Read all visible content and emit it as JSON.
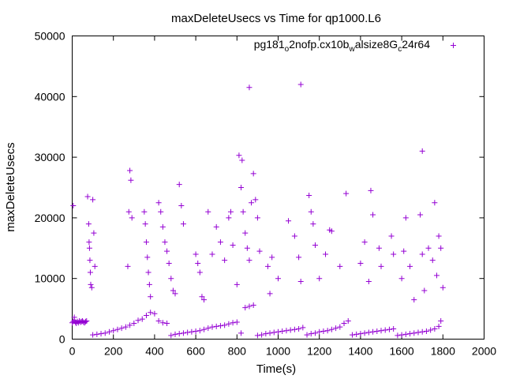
{
  "chart_data": {
    "type": "scatter",
    "title": "maxDeleteUsecs vs Time for qp1000.L6",
    "xlabel": "Time(s)",
    "ylabel": "maxDeleteUsecs",
    "xlim": [
      0,
      2000
    ],
    "ylim": [
      0,
      50000
    ],
    "xticks": [
      0,
      200,
      400,
      600,
      800,
      1000,
      1200,
      1400,
      1600,
      1800,
      2000
    ],
    "yticks": [
      0,
      10000,
      20000,
      30000,
      40000,
      50000
    ],
    "xtick_labels": [
      "0",
      "200",
      "400",
      "600",
      "800",
      "1000",
      "1200",
      "1400",
      "1600",
      "1800",
      "2000"
    ],
    "ytick_labels": [
      "0",
      "10000",
      "20000",
      "30000",
      "40000",
      "50000"
    ],
    "grid": false,
    "legend_position": "top-right",
    "legend": {
      "base": "pg181",
      "sub1": "o",
      "mid1": "2nofp.cx10b",
      "sub2": "w",
      "mid2": "alsize8G",
      "sub3": "c",
      "tail": "24r64"
    },
    "series": [
      {
        "name": "pg181_o2nofp.cx10b_walsize8G_c24r64",
        "color": "#9400d3",
        "marker": "plus",
        "x": [
          0,
          5,
          10,
          15,
          20,
          25,
          30,
          35,
          40,
          45,
          50,
          55,
          60,
          65,
          70,
          100,
          120,
          140,
          160,
          180,
          200,
          220,
          240,
          260,
          280,
          300,
          320,
          340,
          360,
          380,
          400,
          420,
          440,
          460,
          480,
          500,
          520,
          540,
          560,
          580,
          600,
          620,
          640,
          660,
          680,
          700,
          720,
          740,
          760,
          780,
          800,
          820,
          840,
          860,
          880,
          900,
          920,
          940,
          960,
          980,
          1000,
          1020,
          1040,
          1060,
          1080,
          1100,
          1120,
          1140,
          1160,
          1180,
          1200,
          1220,
          1240,
          1260,
          1280,
          1300,
          1320,
          1340,
          1360,
          1380,
          1400,
          1420,
          1440,
          1460,
          1480,
          1500,
          1520,
          1540,
          1560,
          1580,
          1600,
          1620,
          1640,
          1660,
          1680,
          1700,
          1720,
          1740,
          1760,
          1780,
          1790,
          5,
          10,
          75,
          80,
          82,
          84,
          86,
          88,
          90,
          95,
          100,
          105,
          110,
          270,
          275,
          280,
          285,
          290,
          350,
          355,
          360,
          365,
          370,
          375,
          380,
          420,
          430,
          440,
          450,
          460,
          470,
          480,
          490,
          500,
          520,
          530,
          540,
          600,
          610,
          620,
          630,
          640,
          660,
          680,
          700,
          720,
          740,
          760,
          770,
          780,
          800,
          810,
          820,
          830,
          840,
          850,
          860,
          870,
          880,
          890,
          900,
          910,
          950,
          960,
          970,
          1000,
          1050,
          1080,
          1100,
          1110,
          1150,
          1160,
          1170,
          1180,
          1200,
          1230,
          1250,
          1260,
          1300,
          1330,
          1400,
          1420,
          1440,
          1450,
          1460,
          1490,
          1500,
          1550,
          1560,
          1600,
          1610,
          1620,
          1640,
          1660,
          1690,
          1700,
          1710,
          1730,
          1750,
          1760,
          1770,
          1780,
          1790,
          1800,
          860,
          1110,
          825,
          1700
        ],
        "y": [
          2700,
          2900,
          3100,
          2800,
          2600,
          2900,
          2700,
          3000,
          2800,
          2900,
          3000,
          2800,
          2700,
          2900,
          3000,
          700,
          800,
          900,
          1000,
          1200,
          1400,
          1600,
          1800,
          2000,
          2300,
          2600,
          3100,
          3300,
          3900,
          4400,
          4200,
          3000,
          2700,
          2600,
          600,
          800,
          900,
          1000,
          1100,
          1200,
          1300,
          1400,
          1600,
          1800,
          2000,
          2100,
          2200,
          2300,
          2500,
          2700,
          2800,
          1000,
          5200,
          5400,
          5600,
          600,
          700,
          900,
          1000,
          1100,
          1200,
          1300,
          1400,
          1500,
          1600,
          1700,
          1900,
          700,
          900,
          1000,
          1200,
          1300,
          1400,
          1600,
          1800,
          2000,
          2600,
          3000,
          700,
          800,
          900,
          1000,
          1100,
          1200,
          1300,
          1400,
          1500,
          1600,
          1700,
          600,
          700,
          800,
          900,
          1000,
          1100,
          1200,
          1300,
          1500,
          1700,
          2100,
          3000,
          22000,
          3600,
          23500,
          19000,
          16000,
          15000,
          13000,
          11000,
          9000,
          8500,
          23000,
          17500,
          12000,
          12000,
          21000,
          27800,
          26200,
          20000,
          21000,
          19000,
          16000,
          13500,
          11000,
          9000,
          7000,
          22500,
          21000,
          18500,
          16000,
          14500,
          12500,
          10000,
          8000,
          7500,
          25500,
          22000,
          19000,
          14000,
          12500,
          11000,
          7000,
          6500,
          21000,
          14000,
          18500,
          16000,
          13000,
          20000,
          21000,
          15500,
          9000,
          30300,
          25000,
          21000,
          17500,
          15000,
          13000,
          22500,
          27300,
          23000,
          20000,
          14500,
          12000,
          7500,
          13500,
          10000,
          19500,
          17000,
          13500,
          9500,
          23700,
          21000,
          19000,
          15500,
          10000,
          14000,
          18000,
          17800,
          12000,
          24000,
          12500,
          16000,
          9500,
          24500,
          20500,
          15000,
          12000,
          17000,
          14000,
          10000,
          14500,
          20000,
          12000,
          6500,
          20500,
          14000,
          8000,
          15000,
          13000,
          22500,
          10500,
          17000,
          15000,
          8500,
          41500,
          42000,
          29500,
          31000
        ]
      }
    ]
  }
}
